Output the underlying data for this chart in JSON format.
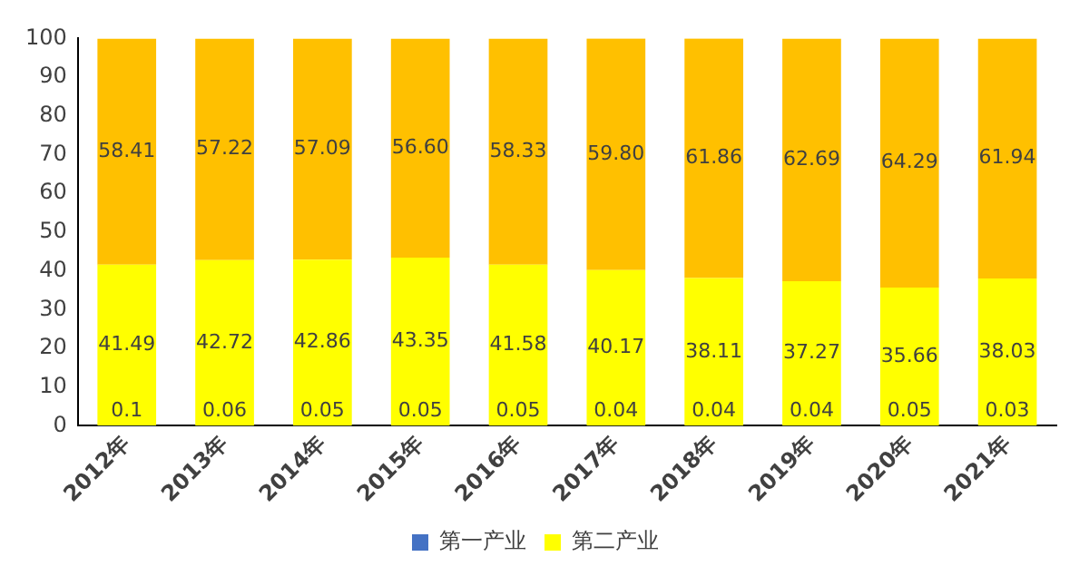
{
  "chart_data": {
    "type": "bar",
    "stacked": true,
    "categories": [
      "2012年",
      "2013年",
      "2014年",
      "2015年",
      "2016年",
      "2017年",
      "2018年",
      "2019年",
      "2020年",
      "2021年"
    ],
    "series": [
      {
        "name": "第一产业",
        "color": "#4472c4",
        "values": [
          0.1,
          0.06,
          0.05,
          0.05,
          0.05,
          0.04,
          0.04,
          0.04,
          0.05,
          0.03
        ],
        "value_labels": [
          "0.1",
          "0.06",
          "0.05",
          "0.05",
          "0.05",
          "0.04",
          "0.04",
          "0.04",
          "0.05",
          "0.03"
        ]
      },
      {
        "name": "第二产业",
        "color": "#ffff00",
        "values": [
          41.49,
          42.72,
          42.86,
          43.35,
          41.58,
          40.17,
          38.11,
          37.27,
          35.66,
          38.03
        ],
        "value_labels": [
          "41.49",
          "42.72",
          "42.86",
          "43.35",
          "41.58",
          "40.17",
          "38.11",
          "37.27",
          "35.66",
          "38.03"
        ]
      },
      {
        "color": "#ffc000",
        "values": [
          58.41,
          57.22,
          57.09,
          56.6,
          58.33,
          59.8,
          61.86,
          62.69,
          64.29,
          61.94
        ],
        "value_labels": [
          "58.41",
          "57.22",
          "57.09",
          "56.60",
          "58.33",
          "59.80",
          "61.86",
          "62.69",
          "64.29",
          "61.94"
        ]
      }
    ],
    "ylim": [
      0,
      100
    ],
    "yticks": [
      0,
      10,
      20,
      30,
      40,
      50,
      60,
      70,
      80,
      90,
      100
    ],
    "grid": false,
    "legend": "bottom"
  }
}
